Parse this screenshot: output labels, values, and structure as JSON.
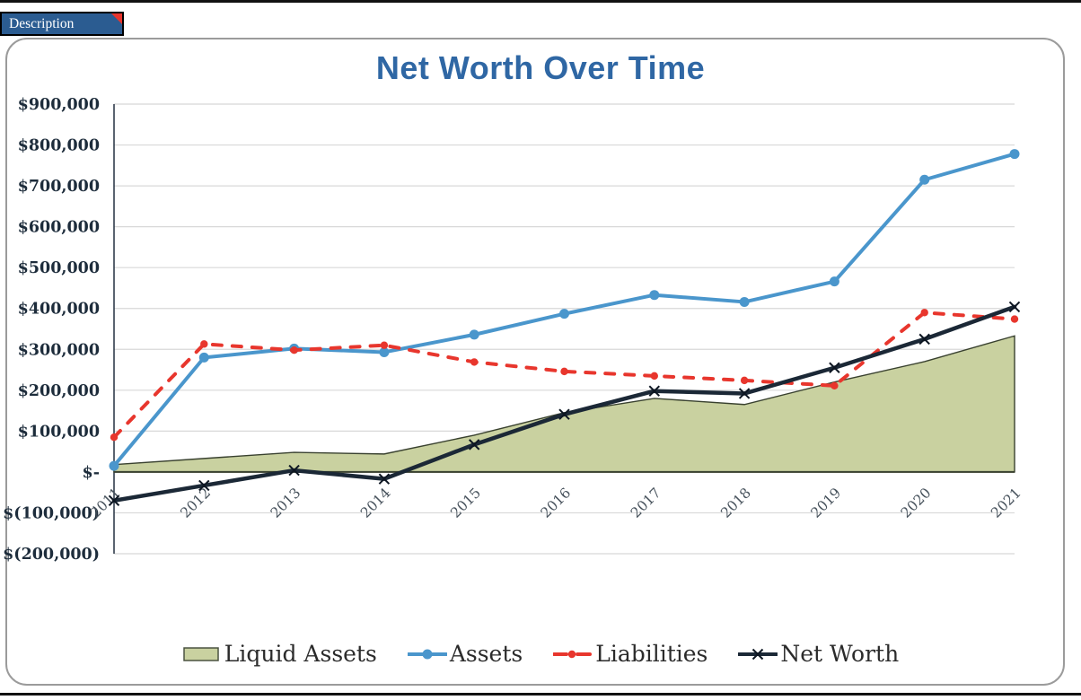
{
  "sheet_tab": {
    "label": "Description"
  },
  "colors": {
    "title": "#2f67a4",
    "tab_background": "#2b5c91",
    "comment_flag": "#e8352d",
    "gridline": "#d8d8d8",
    "axis": "#233040"
  },
  "chart_data": {
    "type": "combo-area-line",
    "title": "Net Worth Over Time",
    "x": [
      "2011",
      "2012",
      "2013",
      "2014",
      "2015",
      "2016",
      "2017",
      "2018",
      "2019",
      "2020",
      "2021"
    ],
    "ylim": [
      -200000,
      900000
    ],
    "ytick_step": 100000,
    "ytick_labels": [
      "$900,000",
      "$800,000",
      "$700,000",
      "$600,000",
      "$500,000",
      "$400,000",
      "$300,000",
      "$200,000",
      "$100,000",
      "$-",
      "$(100,000)",
      "$(200,000)"
    ],
    "grid": true,
    "legend_position": "bottom",
    "series": [
      {
        "name": "Liquid Assets",
        "type": "area",
        "color": "#c9d1a0",
        "outline": "#39412f",
        "values": [
          18000,
          33000,
          48000,
          44000,
          90000,
          145000,
          180000,
          165000,
          220000,
          270000,
          333000
        ]
      },
      {
        "name": "Assets",
        "type": "line",
        "marker": "circle",
        "color": "#4a96cc",
        "values": [
          15000,
          280000,
          302000,
          293000,
          336000,
          387000,
          433000,
          416000,
          466000,
          715000,
          778000
        ]
      },
      {
        "name": "Liabilities",
        "type": "line",
        "marker": "dot",
        "dashed": true,
        "color": "#e8362d",
        "values": [
          85000,
          313000,
          298000,
          310000,
          269000,
          246000,
          235000,
          224000,
          211000,
          390000,
          374000
        ]
      },
      {
        "name": "Net Worth",
        "type": "line",
        "marker": "x",
        "color": "#1b2836",
        "values": [
          -70000,
          -33000,
          4000,
          -17000,
          67000,
          141000,
          198000,
          192000,
          255000,
          325000,
          404000
        ]
      }
    ]
  }
}
